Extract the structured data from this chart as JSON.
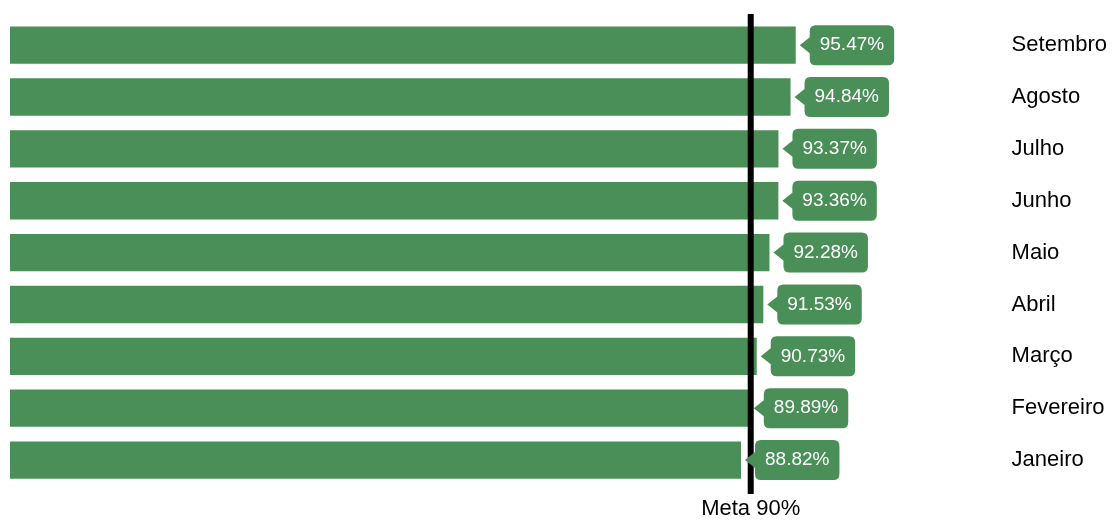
{
  "chart_data": {
    "type": "bar",
    "orientation": "horizontal",
    "categories": [
      "Setembro",
      "Agosto",
      "Julho",
      "Junho",
      "Maio",
      "Abril",
      "Março",
      "Fevereiro",
      "Janeiro"
    ],
    "values": [
      95.47,
      94.84,
      93.37,
      93.36,
      92.28,
      91.53,
      90.73,
      89.89,
      88.82
    ],
    "value_labels": [
      "95.47%",
      "94.84%",
      "93.37%",
      "93.36%",
      "92.28%",
      "91.53%",
      "90.73%",
      "89.89%",
      "88.82%"
    ],
    "color": "#4a8f57",
    "tick_labels": "y",
    "ref_lines": [
      {
        "axis": "x",
        "value": 90,
        "label": "Meta 90%",
        "color": "#000000"
      }
    ]
  }
}
